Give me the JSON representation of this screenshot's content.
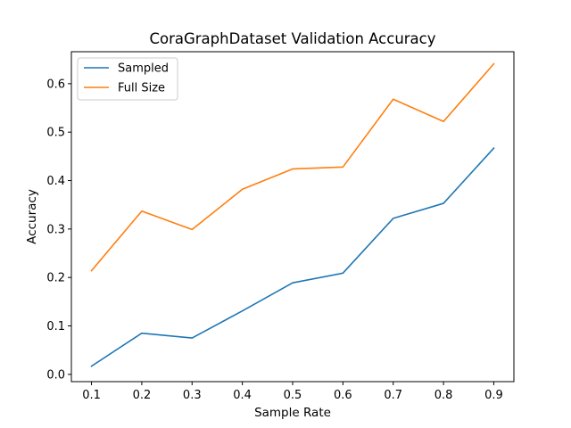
{
  "chart_data": {
    "type": "line",
    "title": "CoraGraphDataset Validation Accuracy",
    "xlabel": "Sample Rate",
    "ylabel": "Accuracy",
    "x": [
      0.1,
      0.2,
      0.3,
      0.4,
      0.5,
      0.6,
      0.7,
      0.8,
      0.9
    ],
    "x_tick_labels": [
      "0.1",
      "0.2",
      "0.3",
      "0.4",
      "0.5",
      "0.6",
      "0.7",
      "0.8",
      "0.9"
    ],
    "y_ticks": [
      0.0,
      0.1,
      0.2,
      0.3,
      0.4,
      0.5,
      0.6
    ],
    "y_tick_labels": [
      "0.0",
      "0.1",
      "0.2",
      "0.3",
      "0.4",
      "0.5",
      "0.6"
    ],
    "xlim": [
      0.06,
      0.94
    ],
    "ylim": [
      -0.015,
      0.666
    ],
    "grid": false,
    "legend_position": "upper-left",
    "series": [
      {
        "name": "Sampled",
        "color": "#1f77b4",
        "values": [
          0.017,
          0.085,
          0.075,
          0.131,
          0.189,
          0.209,
          0.322,
          0.353,
          0.467
        ]
      },
      {
        "name": "Full Size",
        "color": "#ff7f0e",
        "values": [
          0.214,
          0.337,
          0.299,
          0.382,
          0.424,
          0.428,
          0.568,
          0.522,
          0.641
        ]
      }
    ]
  }
}
